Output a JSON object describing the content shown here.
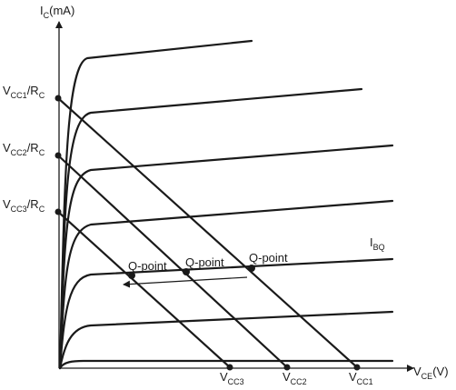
{
  "axes": {
    "y_label": {
      "main": "I",
      "sub": "C",
      "rest": "(mA)"
    },
    "x_label": {
      "main": "V",
      "sub": "CE",
      "rest": "(V)"
    }
  },
  "y_intercepts": [
    {
      "v": "V",
      "vsub": "CC1",
      "sep": "/R",
      "rsub": "C"
    },
    {
      "v": "V",
      "vsub": "CC2",
      "sep": "/R",
      "rsub": "C"
    },
    {
      "v": "V",
      "vsub": "CC3",
      "sep": "/R",
      "rsub": "C"
    }
  ],
  "x_intercepts": [
    {
      "v": "V",
      "vsub": "CC3"
    },
    {
      "v": "V",
      "vsub": "CC2"
    },
    {
      "v": "V",
      "vsub": "CC1"
    }
  ],
  "q_points": [
    "Q-point",
    "Q-point",
    "Q-point"
  ],
  "ibq_label": {
    "main": "I",
    "sub": "BQ"
  },
  "colors": {
    "line": "#1a1a1a",
    "background": "#ffffff"
  }
}
